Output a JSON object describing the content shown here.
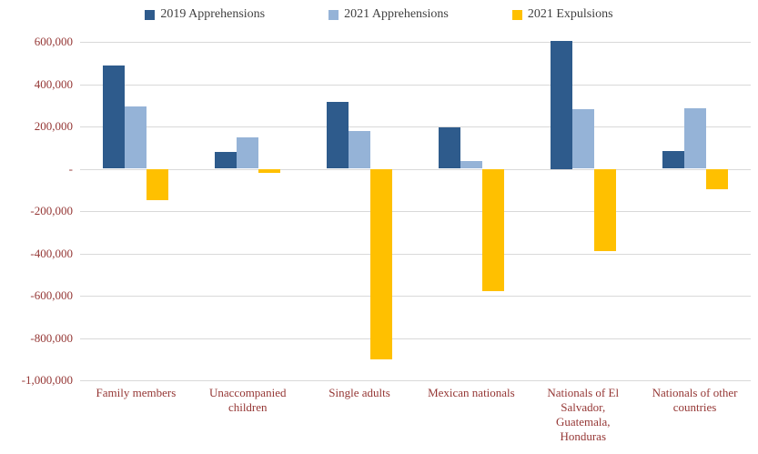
{
  "legend": {
    "items": [
      {
        "label": "2019 Apprehensions",
        "color": "#2e5b8c"
      },
      {
        "label": "2021 Apprehensions",
        "color": "#95b3d7"
      },
      {
        "label": "2021 Expulsions",
        "color": "#ffc000"
      }
    ]
  },
  "chart_data": {
    "type": "bar",
    "title": "",
    "xlabel": "",
    "ylabel": "",
    "categories": [
      "Family members",
      "Unaccompanied children",
      "Single adults",
      "Mexican nationals",
      "Nationals of El Salvador, Guatemala, Honduras",
      "Nationals of other countries"
    ],
    "series": [
      {
        "name": "2019 Apprehensions",
        "color": "#2e5b8c",
        "values": [
          490000,
          78000,
          315000,
          195000,
          605000,
          85000
        ]
      },
      {
        "name": "2021 Apprehensions",
        "color": "#95b3d7",
        "values": [
          295000,
          150000,
          180000,
          35000,
          280000,
          285000
        ]
      },
      {
        "name": "2021 Expulsions",
        "color": "#ffc000",
        "values": [
          -150000,
          -20000,
          -900000,
          -580000,
          -390000,
          -95000
        ]
      }
    ],
    "ylim": [
      -1000000,
      600000
    ],
    "ytick_step": 200000,
    "ytick_labels": [
      "600,000",
      "400,000",
      "200,000",
      "-",
      "-200,000",
      "-400,000",
      "-600,000",
      "-800,000",
      "-1,000,000"
    ],
    "grid": true,
    "legend_position": "top"
  }
}
